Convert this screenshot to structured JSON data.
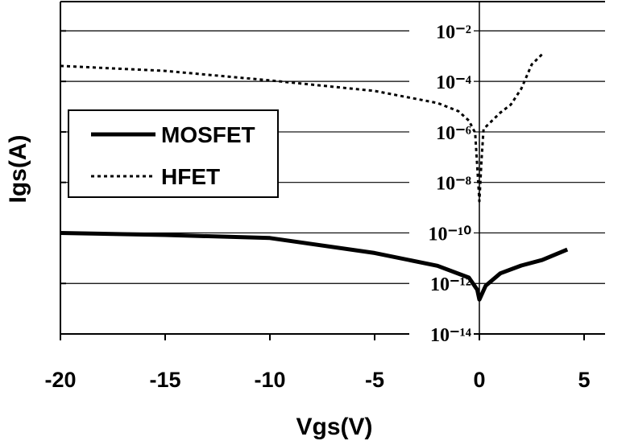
{
  "chart_data": {
    "type": "line",
    "x_label": "Vgs(V)",
    "y_label": "Igs(A)",
    "xlim": [
      -20,
      6
    ],
    "xticks": [
      -20,
      -15,
      -10,
      -5,
      0,
      5
    ],
    "ylim": [
      1e-14,
      0.1
    ],
    "log_y": true,
    "grid": true,
    "legend": "left",
    "yticks": [
      {
        "value": 1e-14,
        "label": "10⁻¹⁴"
      },
      {
        "value": 1e-12,
        "label": "10⁻¹²"
      },
      {
        "value": 1e-10,
        "label": "10⁻¹⁰"
      },
      {
        "value": 1e-08,
        "label": "10⁻⁸"
      },
      {
        "value": 1e-06,
        "label": "10⁻⁶"
      },
      {
        "value": 0.0001,
        "label": "10⁻⁴"
      },
      {
        "value": 0.01,
        "label": "10⁻²"
      }
    ],
    "series": [
      {
        "name": "MOSFET",
        "color": "#000000",
        "style": "solid",
        "x": [
          -20,
          -15,
          -10,
          -5,
          -2,
          -0.5,
          -0.1,
          0,
          0.3,
          1,
          2,
          3,
          4.2
        ],
        "values": [
          1e-10,
          8.3e-11,
          6.3e-11,
          1.6e-11,
          5e-12,
          1.7e-12,
          5.6e-13,
          2.3e-13,
          8.1e-13,
          2.5e-12,
          5.1e-12,
          8.5e-12,
          2.2e-11
        ]
      },
      {
        "name": "HFET",
        "color": "#000000",
        "style": "dotted",
        "x": [
          -20,
          -15,
          -10,
          -5,
          -2,
          -1,
          -0.5,
          -0.2,
          0,
          0.1,
          0.2,
          1,
          1.5,
          2,
          2.5,
          3
        ],
        "values": [
          0.00041,
          0.00026,
          0.00011,
          4.2e-05,
          1.4e-05,
          6.6e-06,
          2.8e-06,
          9.1e-07,
          1.8e-09,
          7.1e-08,
          1.3e-06,
          5.8e-06,
          1.2e-05,
          5.1e-05,
          0.00047,
          0.0012
        ]
      }
    ]
  }
}
